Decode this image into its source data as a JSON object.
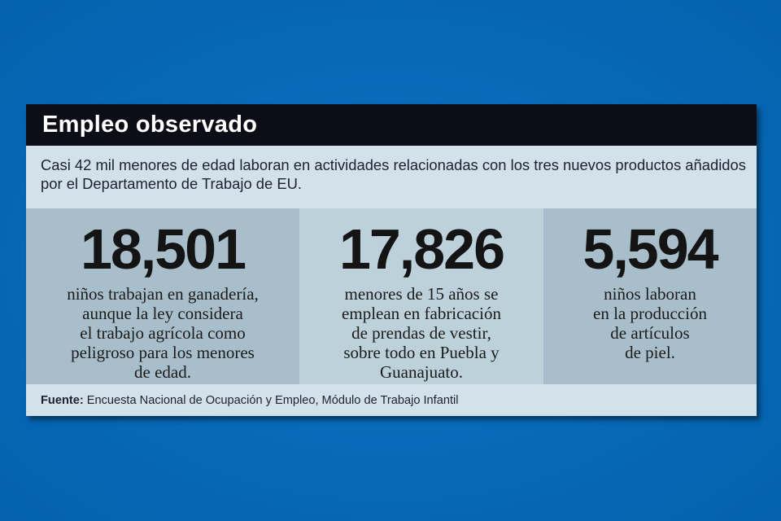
{
  "colors": {
    "background": "#0569b9",
    "header": "#0c0d16",
    "panel": "#d3e1ea",
    "stat_dark": "#a8bfcb",
    "stat_light": "#bdd1db"
  },
  "infographic": {
    "title": "Empleo observado",
    "subtitle": "Casi 42 mil menores de edad laboran en actividades relacionadas con los tres nuevos productos añadidos por el Departamento de Trabajo de EU.",
    "stats": [
      {
        "number": "18,501",
        "lines": [
          "niños trabajan en ganadería,",
          "aunque la ley considera",
          "el trabajo agrícola como",
          "peligroso para los menores",
          "de edad."
        ]
      },
      {
        "number": "17,826",
        "lines": [
          "menores de 15 años se",
          "emplean en fabricación",
          "de prendas de vestir,",
          "sobre todo en Puebla y",
          "Guanajuato."
        ]
      },
      {
        "number": "5,594",
        "lines": [
          "niños laboran",
          "en la producción",
          "de artículos",
          "de piel."
        ]
      }
    ],
    "source_label": "Fuente:",
    "source_text": " Encuesta Nacional de Ocupación y Empleo, Módulo de Trabajo Infantil"
  }
}
